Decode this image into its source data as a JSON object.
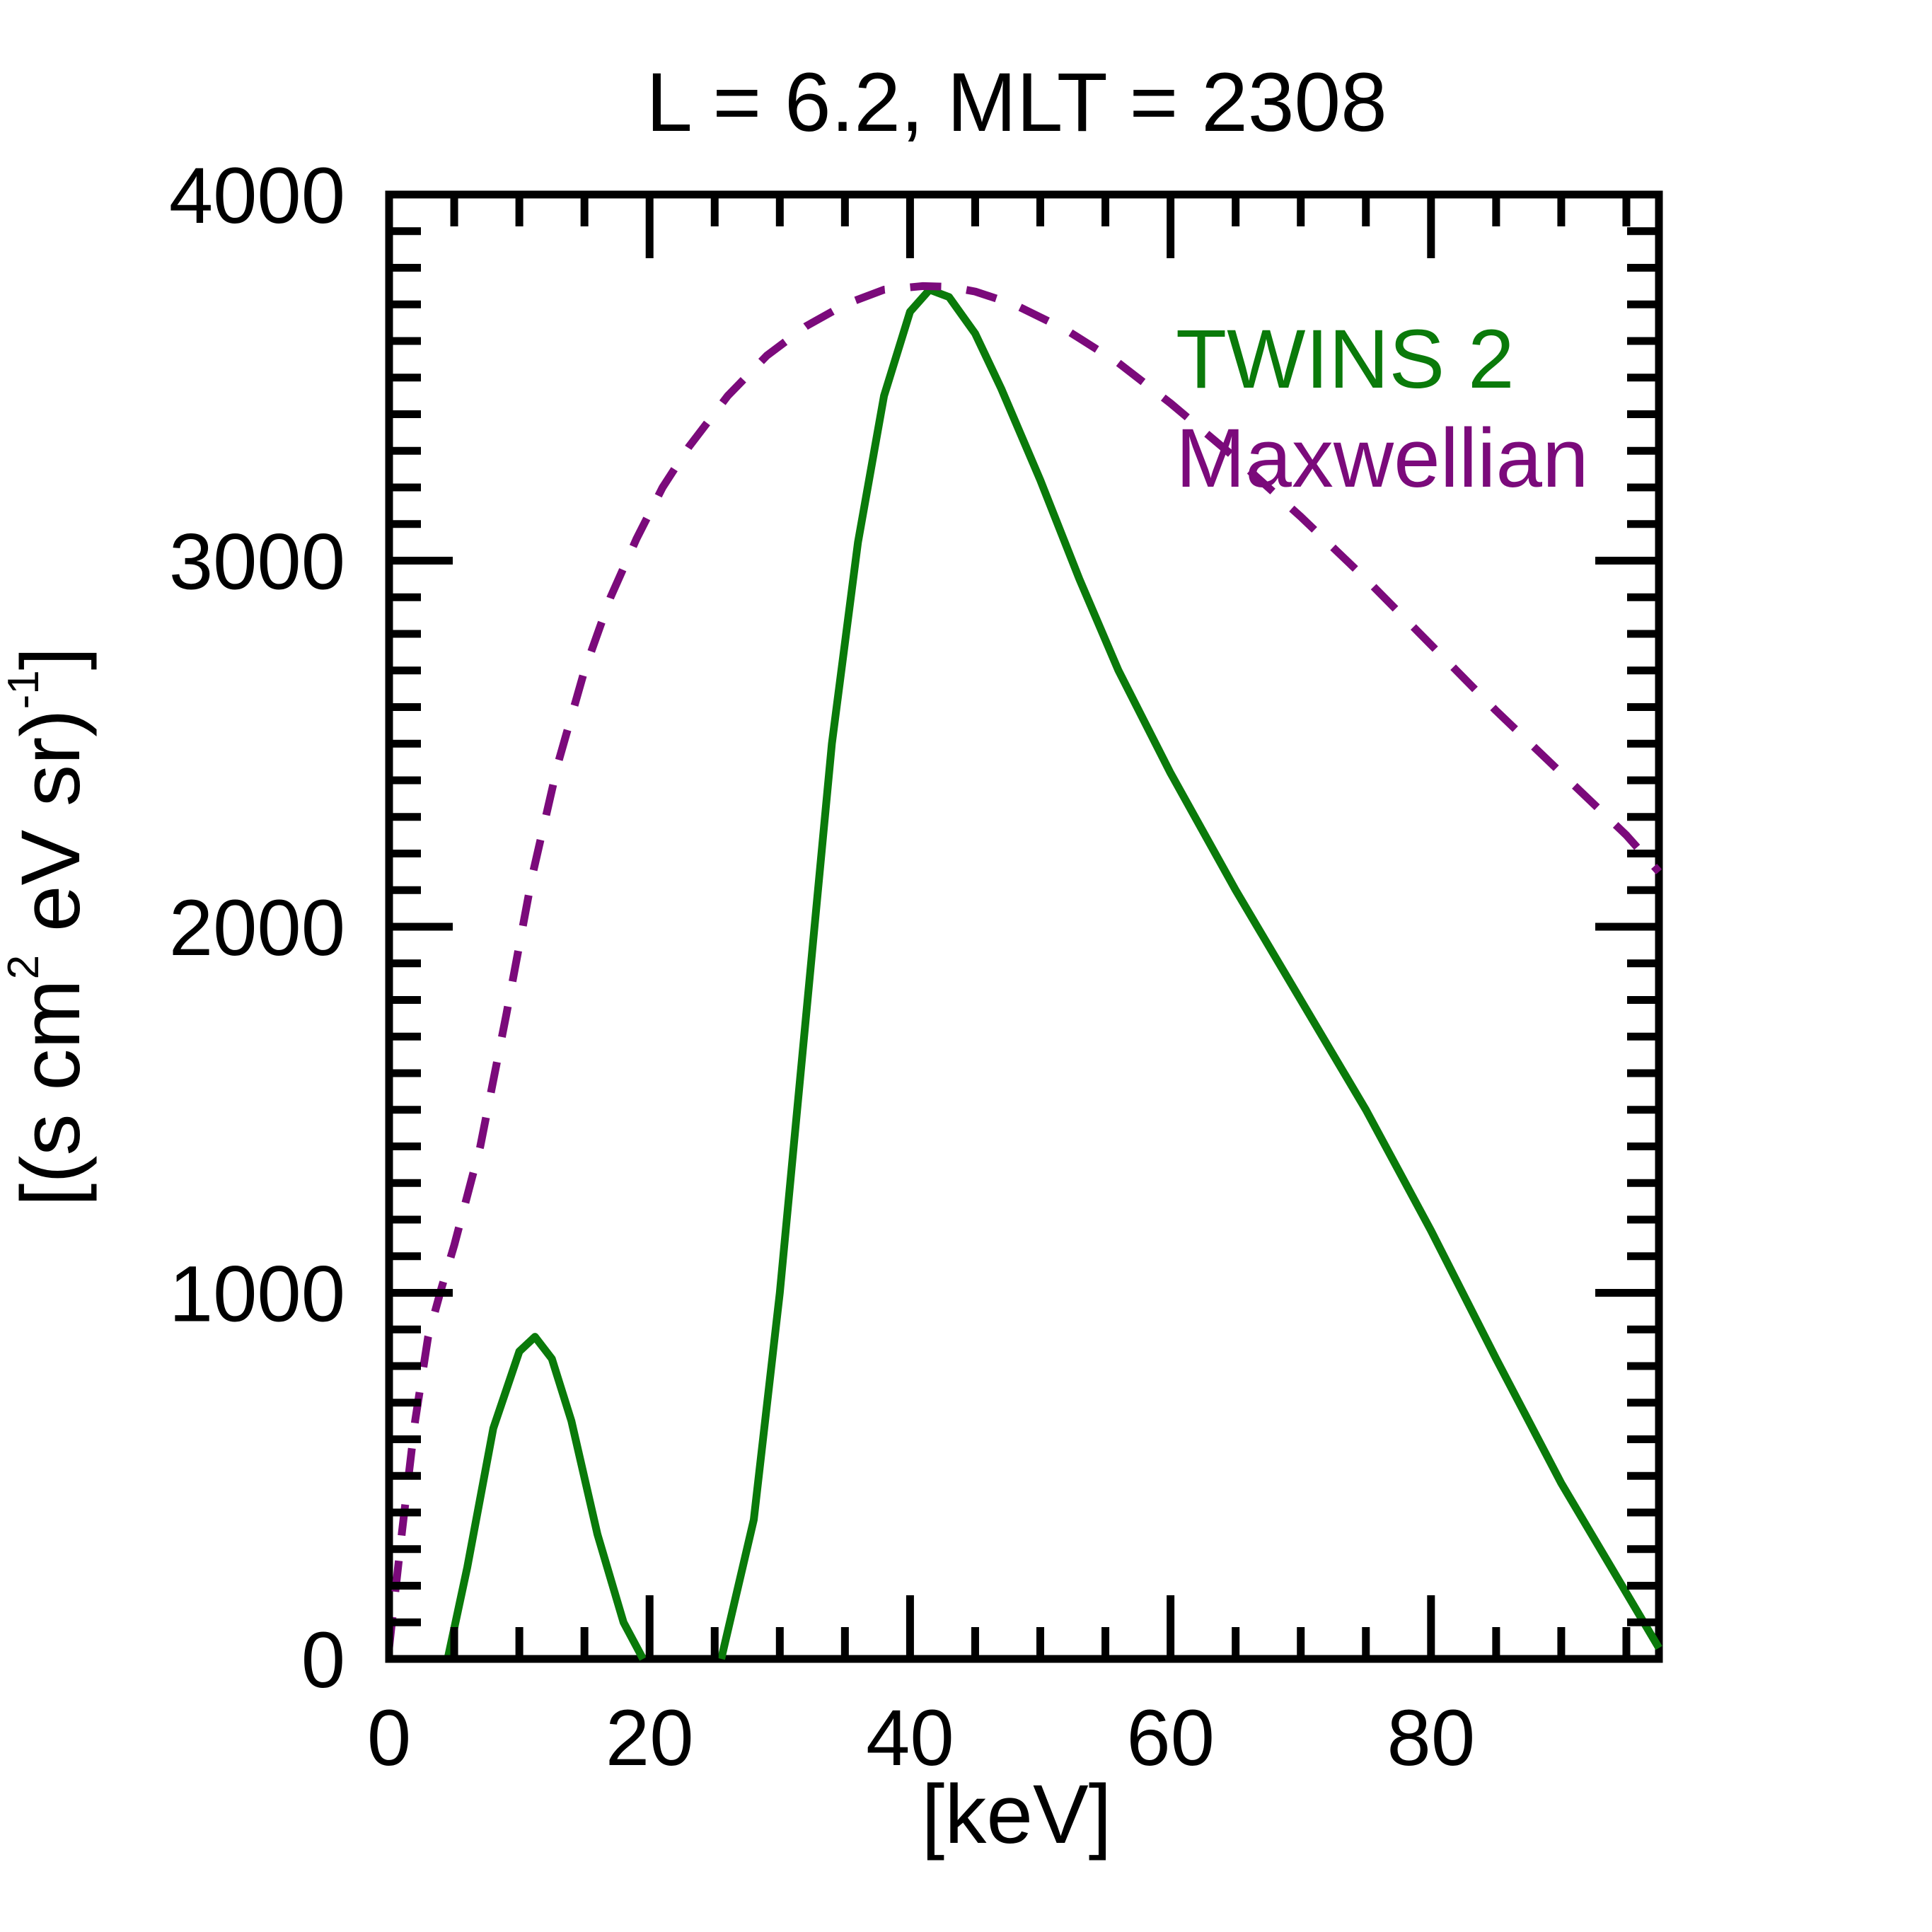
{
  "chart_data": {
    "type": "line",
    "title": "L =  6.2, MLT = 2308",
    "xlabel": "[keV]",
    "ylabel": {
      "pre": "[(s cm",
      "sup1": "2",
      "mid": " eV sr)",
      "sup2": "-1",
      "post": "]"
    },
    "xlim": [
      0,
      97.5
    ],
    "ylim": [
      0,
      4000
    ],
    "x_ticks": [
      {
        "value": 0,
        "label": "0"
      },
      {
        "value": 20,
        "label": "20"
      },
      {
        "value": 40,
        "label": "40"
      },
      {
        "value": 60,
        "label": "60"
      },
      {
        "value": 80,
        "label": "80"
      }
    ],
    "y_ticks": [
      {
        "value": 0,
        "label": "0"
      },
      {
        "value": 1000,
        "label": "1000"
      },
      {
        "value": 2000,
        "label": "2000"
      },
      {
        "value": 3000,
        "label": "3000"
      },
      {
        "value": 4000,
        "label": "4000"
      }
    ],
    "x_minor_step": 5,
    "y_minor_step": 100,
    "grid": false,
    "legend_position": "top-right",
    "series": [
      {
        "name": "TWINS 2",
        "color": "#0a7a0a",
        "dash": "solid",
        "segments": [
          {
            "x": [
              4.5,
              6,
              8,
              10,
              11.2,
              12.5,
              14,
              16,
              18,
              19.5
            ],
            "y": [
              0,
              250,
              630,
              840,
              880,
              820,
              650,
              340,
              100,
              0
            ]
          },
          {
            "x": [
              25.5,
              28,
              30,
              32,
              34,
              36,
              38,
              40,
              41.5,
              43,
              45,
              47,
              50,
              53,
              56,
              60,
              65,
              70,
              75,
              80,
              85,
              90,
              95,
              97.5
            ],
            "y": [
              0,
              380,
              1000,
              1750,
              2500,
              3050,
              3450,
              3680,
              3740,
              3720,
              3620,
              3470,
              3220,
              2950,
              2700,
              2420,
              2100,
              1800,
              1500,
              1170,
              820,
              480,
              180,
              30
            ]
          }
        ]
      },
      {
        "name": "Maxwellian",
        "color": "#7b0a7b",
        "dash": "dashed",
        "segments": [
          {
            "x": [
              0,
              1,
              2,
              3,
              4,
              5,
              7,
              9,
              11,
              13,
              15,
              17,
              19,
              21,
              23,
              26,
              29,
              32,
              35,
              38,
              41,
              43,
              45,
              48,
              52,
              56,
              60,
              65,
              70,
              75,
              80,
              85,
              90,
              95,
              97.5
            ],
            "y": [
              30,
              350,
              650,
              880,
              1010,
              1130,
              1400,
              1760,
              2140,
              2450,
              2700,
              2900,
              3060,
              3200,
              3310,
              3450,
              3560,
              3640,
              3700,
              3740,
              3750,
              3748,
              3735,
              3700,
              3630,
              3540,
              3430,
              3280,
              3120,
              2950,
              2770,
              2590,
              2420,
              2250,
              2150
            ]
          }
        ]
      }
    ]
  }
}
